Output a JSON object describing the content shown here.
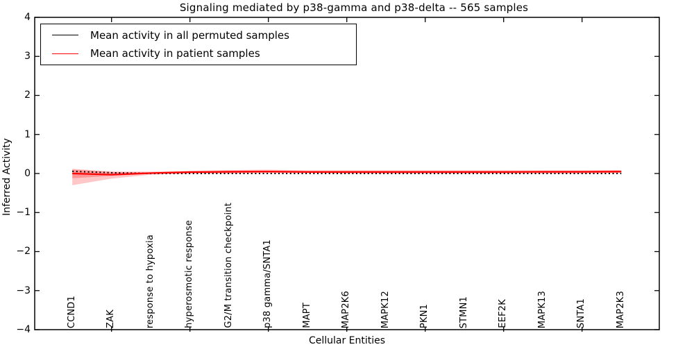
{
  "title": "Signaling mediated by p38-gamma and p38-delta -- 565 samples",
  "chart_data": {
    "type": "line",
    "title": "Signaling mediated by p38-gamma and p38-delta -- 565 samples",
    "xlabel": "Cellular Entities",
    "ylabel": "Inferred Activity",
    "ylim": [
      -4,
      4
    ],
    "yticks": [
      4,
      3,
      2,
      1,
      0,
      -1,
      -2,
      -3,
      -4
    ],
    "ytick_labels": [
      "4",
      "3",
      "2",
      "1",
      "0",
      "−1",
      "−2",
      "−3",
      "−4"
    ],
    "xtick_label_rotation": 90,
    "grid": false,
    "legend_position": "upper left",
    "categories": [
      "CCND1",
      "ZAK",
      "response to hypoxia",
      "hyperosmotic response",
      "G2/M transition checkpoint",
      "p38 gamma/SNTA1",
      "MAPT",
      "MAP2K6",
      "MAPK12",
      "PKN1",
      "STMN1",
      "EEF2K",
      "MAPK13",
      "SNTA1",
      "MAP2K3"
    ],
    "series": [
      {
        "name": "Mean activity in all permuted samples",
        "color": "#000000",
        "linestyle": "dotted",
        "values": [
          0.055,
          0.02,
          0.0,
          0.0,
          0.0,
          0.0,
          0.0,
          0.0,
          0.0,
          0.0,
          0.0,
          0.0,
          0.0,
          0.0,
          0.0
        ]
      },
      {
        "name": "Mean activity in patient samples",
        "color": "#ff0000",
        "linestyle": "solid",
        "values": [
          0.0,
          -0.03,
          0.01,
          0.035,
          0.045,
          0.05,
          0.04,
          0.04,
          0.04,
          0.04,
          0.04,
          0.04,
          0.045,
          0.045,
          0.05
        ]
      }
    ],
    "bands": [
      {
        "name": "patient-activity-spread-outer",
        "color": "#ff0000",
        "opacity": 0.22,
        "upper": [
          0.12,
          0.05,
          0.05,
          0.07,
          0.09,
          0.1,
          0.08,
          0.08,
          0.08,
          0.08,
          0.08,
          0.08,
          0.08,
          0.08,
          0.09
        ],
        "lower": [
          -0.3,
          -0.13,
          -0.03,
          0.0,
          0.0,
          0.01,
          0.01,
          0.0,
          0.0,
          0.0,
          0.0,
          0.0,
          0.0,
          0.0,
          0.01
        ]
      },
      {
        "name": "patient-activity-spread-inner",
        "color": "#ff0000",
        "opacity": 0.25,
        "upper": [
          0.1,
          0.04,
          0.03,
          0.05,
          0.07,
          0.07,
          0.06,
          0.06,
          0.06,
          0.06,
          0.06,
          0.06,
          0.06,
          0.06,
          0.07
        ],
        "lower": [
          -0.12,
          -0.06,
          -0.01,
          0.01,
          0.01,
          0.02,
          0.02,
          0.01,
          0.01,
          0.01,
          0.01,
          0.01,
          0.01,
          0.01,
          0.02
        ]
      }
    ]
  },
  "legend": {
    "entries": [
      {
        "label": "Mean activity in all permuted samples",
        "color": "#000000"
      },
      {
        "label": "Mean activity in patient samples",
        "color": "#ff0000"
      }
    ]
  }
}
